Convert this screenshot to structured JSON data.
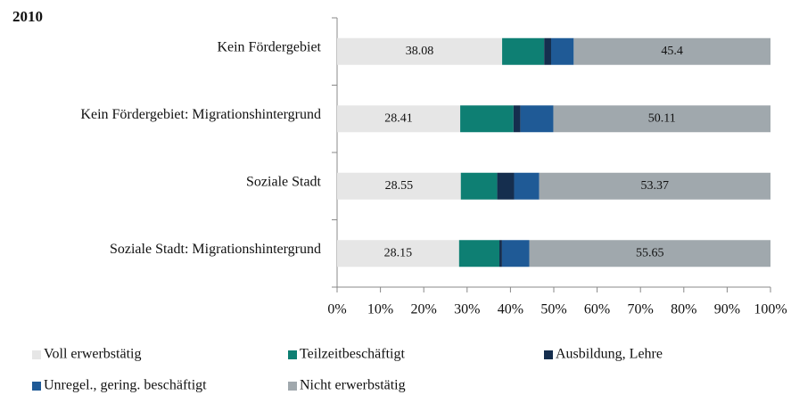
{
  "chart_data": {
    "type": "stacked-bar-horizontal",
    "title": "2010",
    "categories": [
      "Kein Fördergebiet",
      "Kein Fördergebiet: Migrationshintergrund",
      "Soziale Stadt",
      "Soziale Stadt: Migrationshintergrund"
    ],
    "series": [
      {
        "name": "Voll erwerbstätig",
        "color": "#e6e6e6",
        "values": [
          38.08,
          28.41,
          28.55,
          28.15
        ],
        "labels": true
      },
      {
        "name": "Teilzeitbeschäftigt",
        "color": "#0e7f73",
        "values": [
          9.7,
          12.3,
          8.4,
          9.3
        ],
        "labels": false
      },
      {
        "name": "Ausbildung, Lehre",
        "color": "#152e4e",
        "values": [
          1.6,
          1.6,
          3.9,
          0.6
        ],
        "labels": false
      },
      {
        "name": "Unregel., gering. beschäftigt",
        "color": "#1f5a96",
        "values": [
          5.22,
          7.58,
          5.78,
          6.3
        ],
        "labels": false
      },
      {
        "name": "Nicht erwerbstätig",
        "color": "#a0a8ad",
        "values": [
          45.4,
          50.11,
          53.37,
          55.65
        ],
        "labels": true
      }
    ],
    "xlim": [
      0,
      100
    ],
    "xticks": [
      {
        "value": 0,
        "label": "0%"
      },
      {
        "value": 10,
        "label": "10%"
      },
      {
        "value": 20,
        "label": "20%"
      },
      {
        "value": 30,
        "label": "30%"
      },
      {
        "value": 40,
        "label": "40%"
      },
      {
        "value": 50,
        "label": "50%"
      },
      {
        "value": 60,
        "label": "60%"
      },
      {
        "value": 70,
        "label": "70%"
      },
      {
        "value": 80,
        "label": "80%"
      },
      {
        "value": 90,
        "label": "90%"
      },
      {
        "value": 100,
        "label": "100%"
      }
    ],
    "legend": "bottom"
  }
}
